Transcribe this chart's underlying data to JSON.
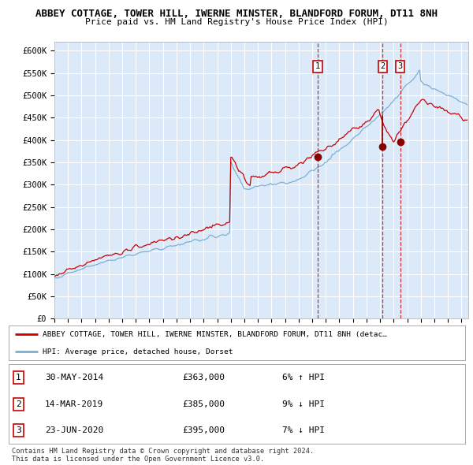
{
  "title1": "ABBEY COTTAGE, TOWER HILL, IWERNE MINSTER, BLANDFORD FORUM, DT11 8NH",
  "title2": "Price paid vs. HM Land Registry's House Price Index (HPI)",
  "ylabel_ticks": [
    "£0",
    "£50K",
    "£100K",
    "£150K",
    "£200K",
    "£250K",
    "£300K",
    "£350K",
    "£400K",
    "£450K",
    "£500K",
    "£550K",
    "£600K"
  ],
  "ytick_values": [
    0,
    50000,
    100000,
    150000,
    200000,
    250000,
    300000,
    350000,
    400000,
    450000,
    500000,
    550000,
    600000
  ],
  "xlim_start": 1995.0,
  "xlim_end": 2025.5,
  "ylim_min": 0,
  "ylim_max": 620000,
  "background_chart": "#dce9f8",
  "line_red_color": "#cc0000",
  "line_blue_color": "#7ab0d4",
  "grid_color": "#ffffff",
  "sale_markers": [
    {
      "year": 2014.41,
      "price": 363000,
      "label": "1"
    },
    {
      "year": 2019.19,
      "price": 385000,
      "label": "2"
    },
    {
      "year": 2020.48,
      "price": 395000,
      "label": "3"
    }
  ],
  "legend_red_label": "ABBEY COTTAGE, TOWER HILL, IWERNE MINSTER, BLANDFORD FORUM, DT11 8NH (detac…",
  "legend_blue_label": "HPI: Average price, detached house, Dorset",
  "table_rows": [
    {
      "num": "1",
      "date": "30-MAY-2014",
      "price": "£363,000",
      "pct": "6% ↑ HPI"
    },
    {
      "num": "2",
      "date": "14-MAR-2019",
      "price": "£385,000",
      "pct": "9% ↓ HPI"
    },
    {
      "num": "3",
      "date": "23-JUN-2020",
      "price": "£395,000",
      "pct": "7% ↓ HPI"
    }
  ],
  "footer": "Contains HM Land Registry data © Crown copyright and database right 2024.\nThis data is licensed under the Open Government Licence v3.0."
}
